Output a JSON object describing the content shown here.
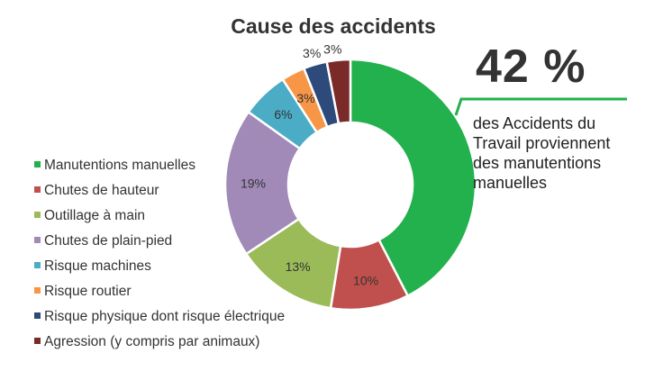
{
  "chart_data": {
    "type": "pie",
    "title": "Cause des accidents",
    "categories": [
      "Manutentions manuelles",
      "Chutes de hauteur",
      "Outillage à main",
      "Chutes de plain-pied",
      "Risque machines",
      "Risque routier",
      "Risque physique dont risque électrique",
      "Agression (y compris par animaux)"
    ],
    "values": [
      42,
      10,
      13,
      19,
      6,
      3,
      3,
      3
    ],
    "value_labels": [
      "",
      "10%",
      "13%",
      "19%",
      "6%",
      "3%",
      "3%",
      "3%"
    ],
    "colors": [
      "#22b14c",
      "#c0504d",
      "#9bbb59",
      "#a18ab8",
      "#4bacc6",
      "#f79646",
      "#2e4a7a",
      "#7b2a2a"
    ],
    "legend_position": "left"
  },
  "callout": {
    "value": "42 %",
    "text": "des Accidents du Travail proviennent des manutentions manuelles",
    "color": "#22b14c"
  }
}
